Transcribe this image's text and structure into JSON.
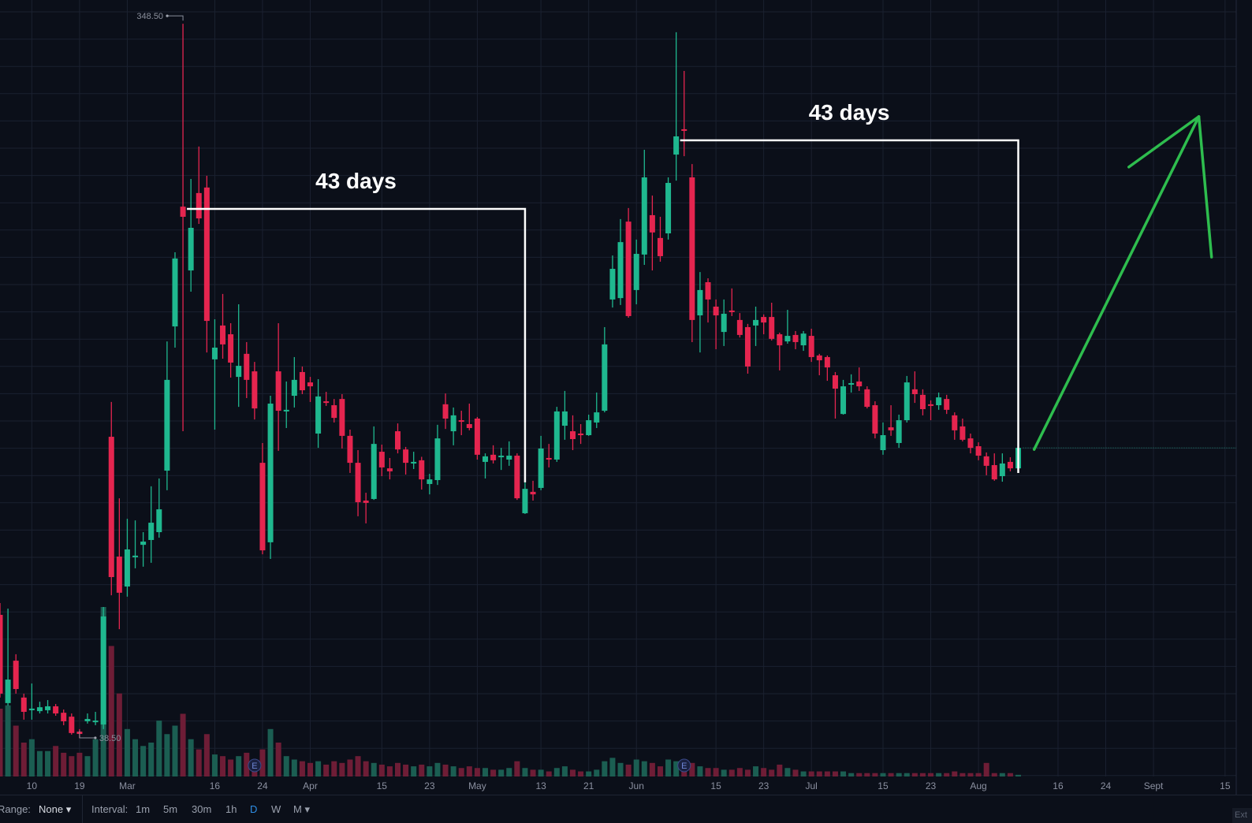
{
  "chart_data": {
    "type": "candlestick",
    "ohlc_fields": [
      "open",
      "high",
      "low",
      "close"
    ],
    "ohlc": [
      [
        91.9,
        97.0,
        56.0,
        57.7
      ],
      [
        53.6,
        94.6,
        52.5,
        63.8
      ],
      [
        72.0,
        74.8,
        57.7,
        59.7
      ],
      [
        56.0,
        57.7,
        46.4,
        49.8
      ],
      [
        50.5,
        62.1,
        46.4,
        51.2
      ],
      [
        50.1,
        54.2,
        49.1,
        51.8
      ],
      [
        50.5,
        54.9,
        49.1,
        52.2
      ],
      [
        52.2,
        53.2,
        48.1,
        49.1
      ],
      [
        49.4,
        50.8,
        44.0,
        45.7
      ],
      [
        47.7,
        49.1,
        39.9,
        40.6
      ],
      [
        41.2,
        42.3,
        38.5,
        40.2
      ],
      [
        45.7,
        49.1,
        44.7,
        46.7
      ],
      [
        45.3,
        49.8,
        44.0,
        46.0
      ],
      [
        44.3,
        95.3,
        42.3,
        91.2
      ],
      [
        169.2,
        184.3,
        100.4,
        108.3
      ],
      [
        117.2,
        142.5,
        85.7,
        101.5
      ],
      [
        104.2,
        133.6,
        99.8,
        120.3
      ],
      [
        116.9,
        132.9,
        112.1,
        117.6
      ],
      [
        122.3,
        127.8,
        112.8,
        123.7
      ],
      [
        124.4,
        147.7,
        114.5,
        131.9
      ],
      [
        127.8,
        151.1,
        125.4,
        137.7
      ],
      [
        154.5,
        210.6,
        146.0,
        193.9
      ],
      [
        217.1,
        249.3,
        207.9,
        246.6
      ],
      [
        269.1,
        348.5,
        171.6,
        264.7
      ],
      [
        241.4,
        281.1,
        232.2,
        259.9
      ],
      [
        275.0,
        295.2,
        261.6,
        264.0
      ],
      [
        277.4,
        282.5,
        205.8,
        219.5
      ],
      [
        202.8,
        220.2,
        172.3,
        207.9
      ],
      [
        217.5,
        231.2,
        203.1,
        209.3
      ],
      [
        213.7,
        218.5,
        194.9,
        201.4
      ],
      [
        195.2,
        226.7,
        182.2,
        200.0
      ],
      [
        205.2,
        210.3,
        186.0,
        193.9
      ],
      [
        197.6,
        201.7,
        176.7,
        181.5
      ],
      [
        157.9,
        166.5,
        118.2,
        119.9
      ],
      [
        123.4,
        187.0,
        116.2,
        183.6
      ],
      [
        197.6,
        218.5,
        163.1,
        180.5
      ],
      [
        180.2,
        193.2,
        173.0,
        180.9
      ],
      [
        187.0,
        203.8,
        181.9,
        193.9
      ],
      [
        197.3,
        199.7,
        187.7,
        189.4
      ],
      [
        192.8,
        195.2,
        184.3,
        191.1
      ],
      [
        170.6,
        194.2,
        164.4,
        186.7
      ],
      [
        184.6,
        188.7,
        182.6,
        183.9
      ],
      [
        182.9,
        185.6,
        175.4,
        177.4
      ],
      [
        185.6,
        187.7,
        164.1,
        169.6
      ],
      [
        169.6,
        172.3,
        153.5,
        157.9
      ],
      [
        157.9,
        163.4,
        134.7,
        140.8
      ],
      [
        141.5,
        144.9,
        131.6,
        140.5
      ],
      [
        142.2,
        173.7,
        141.8,
        166.1
      ],
      [
        162.7,
        165.8,
        152.1,
        155.9
      ],
      [
        155.5,
        160.0,
        150.7,
        154.2
      ],
      [
        171.6,
        175.0,
        162.0,
        163.7
      ],
      [
        163.7,
        164.8,
        152.8,
        157.9
      ],
      [
        157.6,
        162.7,
        155.2,
        158.3
      ],
      [
        159.0,
        160.5,
        146.3,
        150.7
      ],
      [
        148.7,
        153.1,
        144.2,
        150.7
      ],
      [
        150.4,
        174.4,
        148.3,
        168.5
      ],
      [
        183.3,
        188.0,
        172.6,
        177.1
      ],
      [
        171.6,
        181.9,
        165.5,
        178.5
      ],
      [
        176.4,
        180.5,
        169.9,
        175.7
      ],
      [
        174.7,
        183.6,
        172.0,
        173.0
      ],
      [
        177.1,
        177.8,
        159.3,
        161.4
      ],
      [
        158.3,
        162.0,
        151.1,
        160.7
      ],
      [
        161.4,
        165.5,
        157.6,
        159.0
      ],
      [
        160.3,
        164.4,
        154.8,
        161.0
      ],
      [
        159.3,
        167.2,
        156.6,
        161.0
      ],
      [
        161.0,
        162.0,
        141.8,
        142.5
      ],
      [
        136.0,
        149.4,
        135.7,
        146.6
      ],
      [
        145.3,
        150.1,
        141.5,
        144.2
      ],
      [
        147.0,
        169.6,
        146.0,
        164.1
      ],
      [
        160.0,
        166.1,
        155.9,
        159.3
      ],
      [
        159.3,
        182.2,
        158.3,
        180.2
      ],
      [
        174.0,
        189.1,
        167.9,
        180.2
      ],
      [
        171.6,
        178.5,
        163.4,
        168.2
      ],
      [
        170.6,
        174.7,
        166.1,
        169.9
      ],
      [
        169.9,
        178.8,
        169.6,
        176.4
      ],
      [
        175.4,
        188.4,
        173.0,
        179.8
      ],
      [
        180.5,
        216.8,
        179.8,
        209.3
      ],
      [
        228.8,
        247.9,
        225.3,
        242.1
      ],
      [
        229.4,
        263.7,
        226.4,
        253.7
      ],
      [
        262.6,
        268.5,
        220.9,
        221.6
      ],
      [
        232.9,
        254.8,
        226.7,
        248.6
      ],
      [
        248.3,
        293.8,
        243.8,
        281.8
      ],
      [
        265.4,
        273.9,
        241.4,
        257.9
      ],
      [
        255.5,
        264.7,
        245.2,
        247.6
      ],
      [
        257.5,
        281.8,
        254.8,
        279.4
      ],
      [
        291.7,
        344.8,
        280.4,
        299.6
      ],
      [
        302.7,
        328.0,
        291.0,
        302.0
      ],
      [
        281.8,
        287.6,
        210.3,
        219.9
      ],
      [
        221.9,
        240.7,
        205.8,
        232.9
      ],
      [
        236.3,
        238.0,
        218.8,
        228.8
      ],
      [
        225.7,
        228.8,
        207.2,
        221.9
      ],
      [
        214.7,
        228.8,
        208.6,
        222.6
      ],
      [
        224.0,
        233.6,
        221.6,
        223.3
      ],
      [
        219.9,
        222.9,
        212.3,
        213.4
      ],
      [
        216.8,
        218.2,
        196.6,
        199.7
      ],
      [
        217.5,
        225.7,
        208.6,
        219.9
      ],
      [
        221.2,
        222.3,
        213.7,
        218.8
      ],
      [
        221.2,
        227.4,
        211.0,
        211.7
      ],
      [
        213.7,
        214.4,
        198.0,
        208.9
      ],
      [
        210.6,
        224.3,
        209.6,
        213.0
      ],
      [
        213.4,
        215.1,
        207.2,
        210.3
      ],
      [
        208.9,
        215.1,
        206.5,
        214.0
      ],
      [
        213.0,
        216.1,
        201.7,
        203.8
      ],
      [
        204.5,
        205.2,
        195.9,
        202.4
      ],
      [
        203.8,
        204.5,
        193.5,
        199.3
      ],
      [
        195.9,
        197.3,
        177.1,
        190.1
      ],
      [
        179.1,
        193.9,
        178.8,
        191.1
      ],
      [
        191.8,
        196.3,
        188.4,
        192.5
      ],
      [
        193.2,
        199.3,
        189.1,
        191.1
      ],
      [
        189.8,
        191.1,
        181.5,
        182.2
      ],
      [
        182.9,
        184.6,
        168.5,
        170.6
      ],
      [
        163.4,
        175.4,
        161.4,
        169.9
      ],
      [
        173.3,
        182.9,
        169.6,
        172.0
      ],
      [
        166.5,
        178.8,
        164.4,
        176.4
      ],
      [
        176.4,
        195.6,
        175.4,
        192.8
      ],
      [
        189.8,
        197.6,
        183.9,
        187.7
      ],
      [
        187.4,
        189.8,
        178.5,
        181.2
      ],
      [
        183.3,
        185.0,
        176.4,
        182.6
      ],
      [
        182.9,
        188.4,
        180.9,
        186.3
      ],
      [
        185.6,
        187.4,
        179.1,
        180.9
      ],
      [
        178.5,
        179.8,
        167.9,
        172.0
      ],
      [
        173.7,
        177.1,
        167.2,
        167.9
      ],
      [
        168.5,
        170.6,
        162.0,
        164.4
      ],
      [
        165.1,
        166.8,
        159.0,
        161.0
      ],
      [
        160.7,
        162.4,
        152.5,
        156.6
      ],
      [
        156.9,
        162.0,
        150.1,
        150.7
      ],
      [
        152.1,
        162.0,
        149.7,
        157.6
      ],
      [
        158.3,
        160.3,
        154.2,
        155.5
      ],
      [
        155.5,
        164.8,
        154.5,
        164.4
      ]
    ],
    "volume_relative": [
      40,
      42,
      30,
      20,
      22,
      15,
      15,
      18,
      14,
      12,
      14,
      12,
      22,
      100,
      77,
      49,
      28,
      22,
      18,
      20,
      33,
      25,
      30,
      37,
      22,
      16,
      25,
      13,
      12,
      10,
      12,
      14,
      8,
      16,
      28,
      20,
      12,
      10,
      9,
      8,
      9,
      7,
      9,
      8,
      10,
      12,
      9,
      8,
      7,
      6,
      8,
      7,
      6,
      7,
      6,
      8,
      7,
      6,
      5,
      6,
      5,
      5,
      4,
      4,
      5,
      9,
      5,
      4,
      4,
      3,
      5,
      6,
      4,
      3,
      3,
      4,
      9,
      11,
      8,
      7,
      10,
      9,
      8,
      6,
      10,
      9,
      10,
      8,
      6,
      5,
      5,
      4,
      4,
      5,
      4,
      6,
      5,
      4,
      7,
      5,
      4,
      3,
      3,
      3,
      3,
      3,
      3,
      2,
      2,
      2,
      2,
      2,
      2,
      2,
      2,
      2,
      2,
      2,
      2,
      2,
      3,
      2,
      2,
      2,
      8,
      2,
      2,
      2,
      1
    ],
    "x_ticks": [
      {
        "label": "10",
        "bar": 4
      },
      {
        "label": "19",
        "bar": 10
      },
      {
        "label": "Mar",
        "bar": 16
      },
      {
        "label": "16",
        "bar": 27
      },
      {
        "label": "24",
        "bar": 33
      },
      {
        "label": "Apr",
        "bar": 39
      },
      {
        "label": "15",
        "bar": 48
      },
      {
        "label": "23",
        "bar": 54
      },
      {
        "label": "May",
        "bar": 60
      },
      {
        "label": "13",
        "bar": 68
      },
      {
        "label": "21",
        "bar": 74
      },
      {
        "label": "Jun",
        "bar": 80
      },
      {
        "label": "15",
        "bar": 90
      },
      {
        "label": "23",
        "bar": 96
      },
      {
        "label": "Jul",
        "bar": 102
      },
      {
        "label": "15",
        "bar": 111
      },
      {
        "label": "23",
        "bar": 117
      },
      {
        "label": "Aug",
        "bar": 123
      },
      {
        "label": "16",
        "bar": 133
      },
      {
        "label": "24",
        "bar": 139
      },
      {
        "label": "Sept",
        "bar": 145
      },
      {
        "label": "15",
        "bar": 154
      }
    ],
    "high_marker": {
      "label": "348.50",
      "bar": 23,
      "value": 348.5
    },
    "low_marker": {
      "label": "38.50",
      "bar": 10,
      "value": 38.5
    },
    "last_price": 164.4,
    "annotations": [
      {
        "label": "43 days",
        "from": {
          "bar": 23,
          "value": 268.1
        },
        "to": {
          "bar": 66,
          "value": 149.4
        }
      },
      {
        "label": "43 days",
        "from": {
          "bar": 85,
          "value": 297.9
        },
        "to": {
          "bar": 128,
          "value": 153.5
        }
      }
    ],
    "arrow": {
      "start": {
        "bar": 130,
        "value": 163.7
      },
      "tip": {
        "bar": 150.7,
        "value": 308.2
      },
      "head_left": {
        "bar": 141.9,
        "value": 286.3
      },
      "head_right": {
        "bar": 152.3,
        "value": 247.2
      }
    },
    "earnings_markers": [
      {
        "label": "E",
        "bar": 32
      },
      {
        "label": "E",
        "bar": 86
      }
    ],
    "grid": true,
    "colors": {
      "up": "#1fb88f",
      "down": "#e5254f",
      "up_volume": "#1b5e52",
      "down_volume": "#6e1d36",
      "annotation": "#ffffff",
      "arrow": "#2ebd4e",
      "background": "#0b0f19",
      "grid": "#1b2130"
    }
  },
  "toolbar": {
    "range_label": "Range:",
    "range_value": "None ▾",
    "interval_label": "Interval:",
    "intervals": [
      "1m",
      "5m",
      "30m",
      "1h",
      "D",
      "W",
      "M ▾"
    ],
    "active_interval": "D",
    "ext_label": "Ext"
  }
}
